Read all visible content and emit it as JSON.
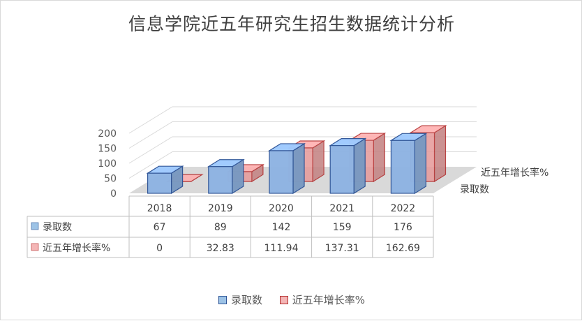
{
  "chart_data": {
    "type": "bar",
    "title": "信息学院近五年研究生招生数据统计分析",
    "categories": [
      "2018",
      "2019",
      "2020",
      "2021",
      "2022"
    ],
    "series": [
      {
        "name": "录取数",
        "values": [
          67,
          89,
          142,
          159,
          176
        ],
        "color": "#8fb4e3",
        "stroke": "#2f5597",
        "swatch": "#9dc3e6"
      },
      {
        "name": "近五年增长率%",
        "values": [
          0,
          32.83,
          111.94,
          137.31,
          162.69
        ],
        "color": "#e69b9b",
        "stroke": "#b22c2c",
        "swatch": "#f4b6b6"
      }
    ],
    "series_labels": [
      "录取数",
      "近五年增长率%"
    ],
    "table_values": [
      [
        "67",
        "89",
        "142",
        "159",
        "176"
      ],
      [
        "0",
        "32.83",
        "111.94",
        "137.31",
        "162.69"
      ]
    ],
    "y_ticks": [
      "0",
      "50",
      "100",
      "150",
      "200"
    ],
    "ylim": [
      0,
      200
    ],
    "xlabel": "",
    "ylabel": "",
    "legend_position": "bottom",
    "grid": true
  }
}
